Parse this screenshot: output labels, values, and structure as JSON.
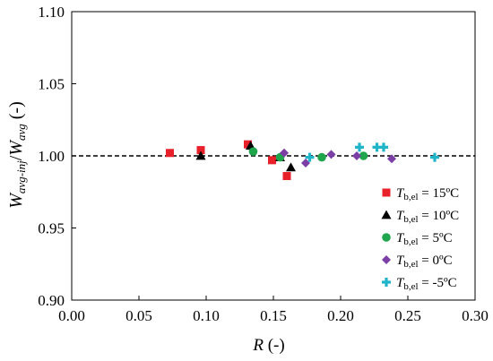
{
  "chart_data": {
    "type": "scatter",
    "xlabel": {
      "main": "R",
      "suffix": " (-)"
    },
    "ylabel": {
      "w1": "W",
      "sub1": "avg-inj",
      "slash": "/",
      "w2": "W",
      "sub2": "avg",
      "suffix": " (-)"
    },
    "xlim": [
      0,
      0.3
    ],
    "ylim": [
      0.9,
      1.1
    ],
    "x_ticks": [
      "0.00",
      "0.05",
      "0.10",
      "0.15",
      "0.20",
      "0.25",
      "0.30"
    ],
    "y_ticks": [
      "0.90",
      "0.95",
      "1.00",
      "1.05",
      "1.10"
    ],
    "grid": false,
    "reference_line": {
      "y": 1.0,
      "style": "dashed"
    },
    "legend_placement": "bottom-right",
    "series": [
      {
        "name": "T_b,el = 15ºC",
        "label_sym": "T",
        "label_sub": "b,el",
        "label_rest": " = 15ºC",
        "marker": "square",
        "color": "#e8202a",
        "points": [
          {
            "x": 0.073,
            "y": 1.002
          },
          {
            "x": 0.096,
            "y": 1.004
          },
          {
            "x": 0.131,
            "y": 1.008
          },
          {
            "x": 0.149,
            "y": 0.997
          },
          {
            "x": 0.16,
            "y": 0.986
          }
        ]
      },
      {
        "name": "T_b,el = 10ºC",
        "label_sym": "T",
        "label_sub": "b,el",
        "label_rest": " = 10ºC",
        "marker": "triangle",
        "color": "#000000",
        "points": [
          {
            "x": 0.096,
            "y": 1.0
          },
          {
            "x": 0.133,
            "y": 1.007
          },
          {
            "x": 0.155,
            "y": 0.999
          },
          {
            "x": 0.163,
            "y": 0.992
          }
        ]
      },
      {
        "name": "T_b,el = 5ºC",
        "label_sym": "T",
        "label_sub": "b,el",
        "label_rest": " = 5ºC",
        "marker": "circle",
        "color": "#1fa54b",
        "points": [
          {
            "x": 0.135,
            "y": 1.003
          },
          {
            "x": 0.155,
            "y": 0.999
          },
          {
            "x": 0.186,
            "y": 0.999
          },
          {
            "x": 0.217,
            "y": 1.0
          }
        ]
      },
      {
        "name": "T_b,el = 0ºC",
        "label_sym": "T",
        "label_sub": "b,el",
        "label_rest": " = 0ºC",
        "marker": "diamond",
        "color": "#7b3fa6",
        "points": [
          {
            "x": 0.158,
            "y": 1.002
          },
          {
            "x": 0.174,
            "y": 0.995
          },
          {
            "x": 0.193,
            "y": 1.001
          },
          {
            "x": 0.212,
            "y": 1.0
          },
          {
            "x": 0.238,
            "y": 0.998
          }
        ]
      },
      {
        "name": "T_b,el = -5ºC",
        "label_sym": "T",
        "label_sub": "b,el",
        "label_rest": " = -5ºC",
        "marker": "plus",
        "color": "#1fb4c8",
        "points": [
          {
            "x": 0.177,
            "y": 0.999
          },
          {
            "x": 0.214,
            "y": 1.006
          },
          {
            "x": 0.227,
            "y": 1.006
          },
          {
            "x": 0.232,
            "y": 1.006
          },
          {
            "x": 0.27,
            "y": 0.999
          }
        ]
      }
    ]
  }
}
